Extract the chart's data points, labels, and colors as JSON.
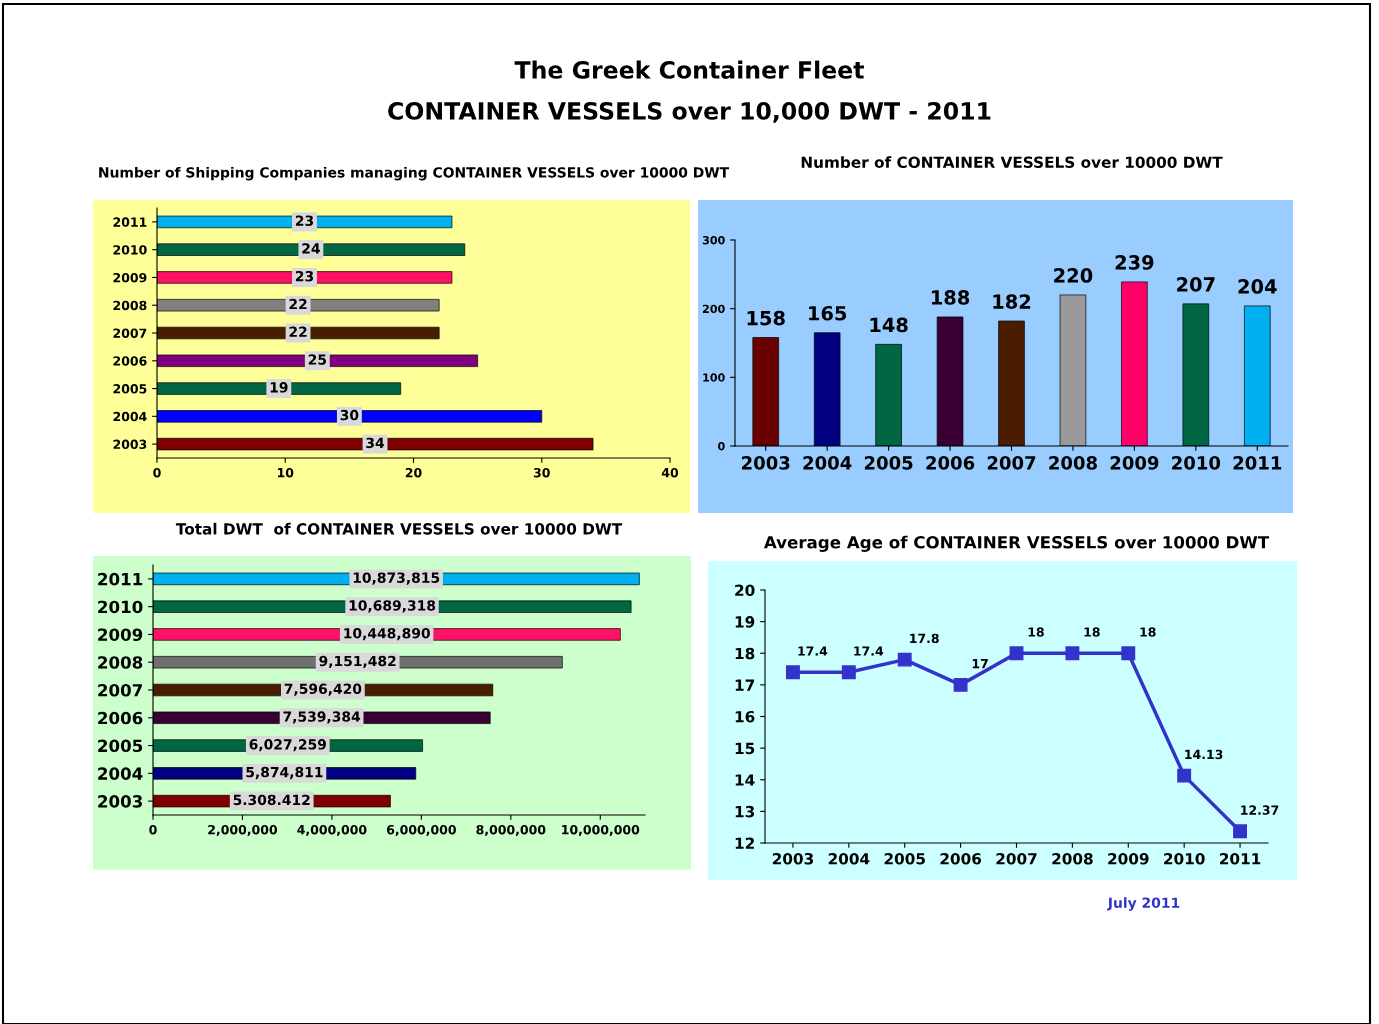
{
  "chart_data": [
    {
      "type": "other",
      "title": "The Greek Container Fleet",
      "subtitle": "CONTAINER VESSELS over 10,000 DWT - 2011",
      "annotations": [
        "July 2011"
      ]
    },
    {
      "type": "bar",
      "orientation": "horizontal",
      "title": "Number of Shipping Companies managing CONTAINER VESSELS over 10000 DWT",
      "categories": [
        "2011",
        "2010",
        "2009",
        "2008",
        "2007",
        "2006",
        "2005",
        "2004",
        "2003"
      ],
      "values": [
        23,
        24,
        23,
        22,
        22,
        25,
        19,
        30,
        34
      ],
      "colors": [
        "#00b0f0",
        "#006644",
        "#ff1166",
        "#808080",
        "#4a1c00",
        "#800080",
        "#006644",
        "#0000ff",
        "#800000"
      ],
      "xlim": [
        0,
        40
      ],
      "xticks": [
        0,
        10,
        20,
        30,
        40
      ],
      "data_labels": true
    },
    {
      "type": "bar",
      "title": "Number of CONTAINER VESSELS over 10000 DWT",
      "categories": [
        "2003",
        "2004",
        "2005",
        "2006",
        "2007",
        "2008",
        "2009",
        "2010",
        "2011"
      ],
      "values": [
        158,
        165,
        148,
        188,
        182,
        220,
        239,
        207,
        204
      ],
      "colors": [
        "#6b0000",
        "#000080",
        "#006644",
        "#3a0033",
        "#4a1c00",
        "#999999",
        "#ff0066",
        "#006644",
        "#00b0f0"
      ],
      "ylim": [
        0,
        300
      ],
      "yticks": [
        0,
        100,
        200,
        300
      ],
      "data_labels": true
    },
    {
      "type": "bar",
      "orientation": "horizontal",
      "title": "Total DWT  of CONTAINER VESSELS over 10000 DWT",
      "categories": [
        "2011",
        "2010",
        "2009",
        "2008",
        "2007",
        "2006",
        "2005",
        "2004",
        "2003"
      ],
      "values": [
        10873815,
        10689318,
        10448890,
        9151482,
        7596420,
        7539384,
        6027259,
        5874811,
        5308412
      ],
      "value_labels": [
        "10,873,815",
        "10,689,318",
        "10,448,890",
        "9,151,482",
        "7,596,420",
        "7,539,384",
        "6,027,259",
        "5,874,811",
        "5.308.412"
      ],
      "colors": [
        "#00b0f0",
        "#006644",
        "#ff1166",
        "#707070",
        "#4a1c00",
        "#3a0033",
        "#006644",
        "#000080",
        "#800000"
      ],
      "xlim": [
        0,
        11000000
      ],
      "xticks": [
        0,
        {
          "value": 2000000,
          "label": "2,000,000"
        },
        {
          "value": 4000000,
          "label": "4,000,000"
        },
        {
          "value": 6000000,
          "label": "6,000,000"
        },
        {
          "value": 8000000,
          "label": "8,000,000"
        },
        {
          "value": 10000000,
          "label": "10,000,000"
        }
      ]
    },
    {
      "type": "line",
      "title": "Average Age of CONTAINER VESSELS over 10000 DWT",
      "categories": [
        "2003",
        "2004",
        "2005",
        "2006",
        "2007",
        "2008",
        "2009",
        "2010",
        "2011"
      ],
      "series": [
        {
          "color": "#3333cc",
          "values": [
            17.4,
            17.4,
            17.8,
            17,
            18,
            18,
            18,
            14.13,
            12.37
          ]
        }
      ],
      "ylim": [
        12,
        20
      ],
      "yticks": [
        12,
        13,
        14,
        15,
        16,
        17,
        18,
        19,
        20
      ],
      "marker": "square",
      "line_style": "solid",
      "data_labels": true
    }
  ]
}
